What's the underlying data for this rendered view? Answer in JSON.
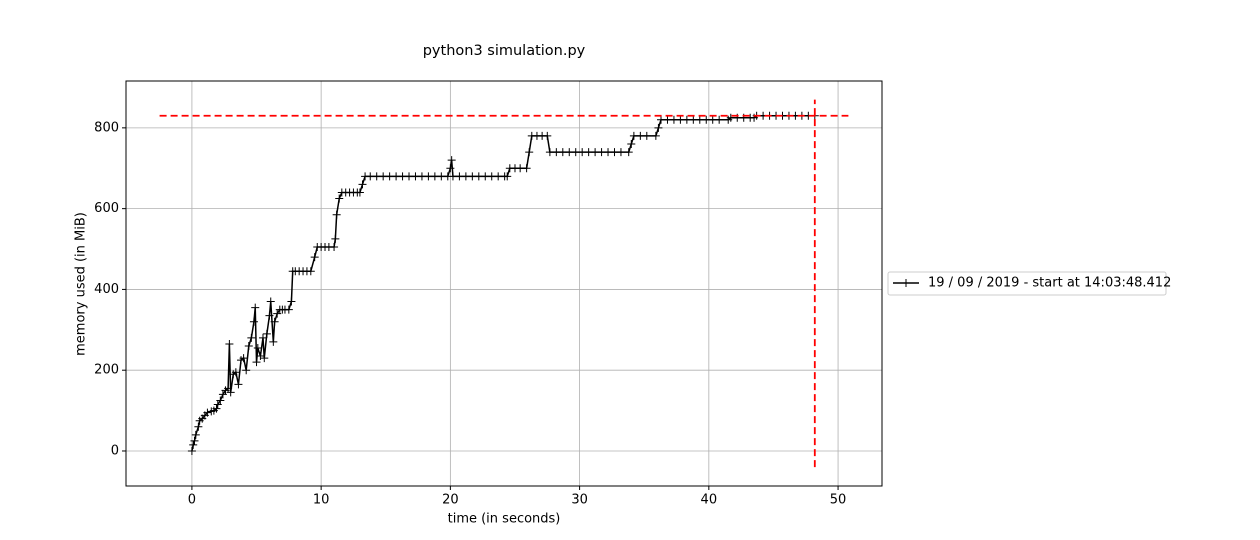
{
  "chart_data": {
    "type": "line",
    "title": "python3 simulation.py",
    "xlabel": "time (in seconds)",
    "ylabel": "memory used (in MiB)",
    "xlim": [
      -5.1,
      53.4
    ],
    "ylim": [
      -86.7,
      916
    ],
    "xticks": [
      0,
      10,
      20,
      30,
      40,
      50
    ],
    "yticks": [
      0,
      200,
      400,
      600,
      800
    ],
    "grid": true,
    "legend": "right outside",
    "series": [
      {
        "name": "19 / 09 / 2019 - start at 14:03:48.412",
        "color": "#000000",
        "marker": "+",
        "x": [
          0,
          0.1,
          0.2,
          0.3,
          0.5,
          0.6,
          0.8,
          1.0,
          1.2,
          1.5,
          1.7,
          1.9,
          2.0,
          2.2,
          2.4,
          2.6,
          2.8,
          2.9,
          3.0,
          3.2,
          3.4,
          3.6,
          3.8,
          4.0,
          4.2,
          4.4,
          4.6,
          4.8,
          4.9,
          5.0,
          5.1,
          5.3,
          5.5,
          5.6,
          5.8,
          6.0,
          6.1,
          6.3,
          6.4,
          6.6,
          6.8,
          7.0,
          7.2,
          7.5,
          7.7,
          7.8,
          8.0,
          8.3,
          8.6,
          8.9,
          9.2,
          9.5,
          9.7,
          10.0,
          10.3,
          10.6,
          11.0,
          11.1,
          11.2,
          11.4,
          11.6,
          11.9,
          12.2,
          12.5,
          12.8,
          13.0,
          13.2,
          13.4,
          13.8,
          14.3,
          14.8,
          15.3,
          15.8,
          16.3,
          16.8,
          17.3,
          17.8,
          18.3,
          18.8,
          19.3,
          19.8,
          20.0,
          20.1,
          20.2,
          20.7,
          21.2,
          21.7,
          22.2,
          22.7,
          23.2,
          23.7,
          24.2,
          24.4,
          24.6,
          25.0,
          25.4,
          25.9,
          26.1,
          26.3,
          26.7,
          27.1,
          27.5,
          27.7,
          28.2,
          28.7,
          29.2,
          29.7,
          30.2,
          30.7,
          31.2,
          31.7,
          32.2,
          32.7,
          33.2,
          33.8,
          34.0,
          34.2,
          34.7,
          35.2,
          35.9,
          36.1,
          36.3,
          36.8,
          37.3,
          37.8,
          38.3,
          38.8,
          39.3,
          39.8,
          40.3,
          40.8,
          41.5,
          41.7,
          42.2,
          42.7,
          43.2,
          43.5,
          43.7,
          44.2,
          44.7,
          45.2,
          45.7,
          46.2,
          46.7,
          47.2,
          47.7,
          48.2
        ],
        "values": [
          0,
          15,
          25,
          40,
          60,
          75,
          80,
          88,
          95,
          98,
          100,
          105,
          115,
          125,
          140,
          150,
          155,
          265,
          145,
          190,
          195,
          165,
          225,
          230,
          200,
          260,
          280,
          320,
          355,
          220,
          255,
          235,
          280,
          230,
          290,
          335,
          370,
          270,
          320,
          340,
          350,
          350,
          350,
          350,
          370,
          445,
          445,
          445,
          445,
          445,
          445,
          480,
          505,
          505,
          505,
          505,
          505,
          525,
          585,
          625,
          640,
          640,
          640,
          640,
          640,
          640,
          660,
          680,
          680,
          680,
          680,
          680,
          680,
          680,
          680,
          680,
          680,
          680,
          680,
          680,
          680,
          700,
          720,
          680,
          680,
          680,
          680,
          680,
          680,
          680,
          680,
          680,
          680,
          700,
          700,
          700,
          700,
          740,
          780,
          780,
          780,
          780,
          740,
          740,
          740,
          740,
          740,
          740,
          740,
          740,
          740,
          740,
          740,
          740,
          740,
          760,
          780,
          780,
          780,
          780,
          800,
          820,
          820,
          820,
          820,
          820,
          820,
          820,
          820,
          820,
          820,
          820,
          825,
          825,
          825,
          825,
          825,
          830,
          830,
          830,
          830,
          830,
          830,
          830,
          830,
          830,
          830
        ]
      }
    ],
    "hline": {
      "y": 830,
      "xmin": -2.5,
      "xmax": 50.8,
      "color": "#ff0000"
    },
    "vline": {
      "x": 48.2,
      "ymin": -40,
      "ymax": 870,
      "color": "#ff0000"
    }
  }
}
